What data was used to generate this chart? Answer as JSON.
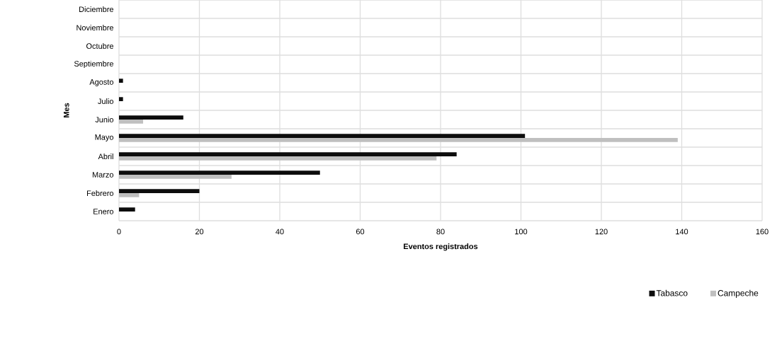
{
  "chart_data": {
    "type": "bar",
    "orientation": "horizontal",
    "xlabel": "Eventos registrados",
    "ylabel": "Mes",
    "categories": [
      "Diciembre",
      "Noviembre",
      "Octubre",
      "Septiembre",
      "Agosto",
      "Julio",
      "Junio",
      "Mayo",
      "Abril",
      "Marzo",
      "Febrero",
      "Enero"
    ],
    "series": [
      {
        "name": "Tabasco",
        "color": "#0d0d0d",
        "values": [
          0,
          0,
          0,
          0,
          1,
          1,
          16,
          101,
          84,
          50,
          20,
          4
        ]
      },
      {
        "name": "Campeche",
        "color": "#bfbfbf",
        "values": [
          0,
          0,
          0,
          0,
          0,
          0,
          6,
          139,
          79,
          28,
          5,
          0
        ]
      }
    ],
    "xlim": [
      0,
      160
    ],
    "xticks": [
      0,
      20,
      40,
      60,
      80,
      100,
      120,
      140,
      160
    ],
    "grid": true,
    "legend": "bottom right"
  }
}
